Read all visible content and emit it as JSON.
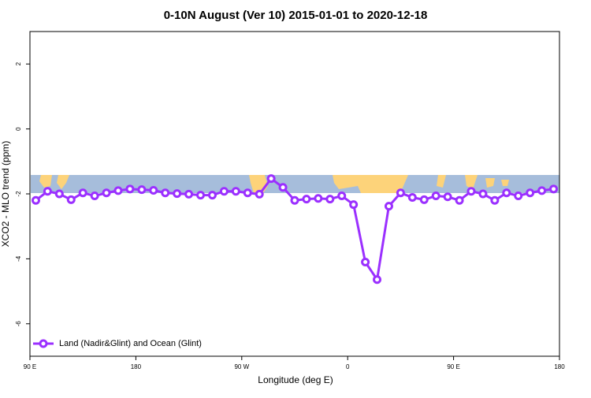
{
  "chart_data": {
    "type": "line",
    "title": "0-10N August (Ver 10)   2015-01-01 to 2020-12-18",
    "x_label": "Longitude (deg E)",
    "y_label": "XCO2 - MLO trend (ppm)",
    "x": [
      95,
      105,
      115,
      125,
      135,
      145,
      155,
      165,
      175,
      185,
      195,
      205,
      215,
      225,
      235,
      245,
      255,
      265,
      275,
      285,
      295,
      305,
      315,
      325,
      335,
      345,
      355,
      365,
      375,
      385,
      395,
      405,
      415,
      425,
      435,
      445,
      455,
      465,
      475,
      485,
      495,
      505,
      515,
      525,
      535
    ],
    "series": [
      {
        "name": "Land (Nadir&Glint) and Ocean (Glint)",
        "color": "#9b30ff",
        "values": [
          -2.2,
          -1.92,
          -2.0,
          -2.18,
          -1.97,
          -2.06,
          -1.97,
          -1.9,
          -1.85,
          -1.87,
          -1.89,
          -1.97,
          -1.99,
          -2.01,
          -2.04,
          -2.04,
          -1.92,
          -1.92,
          -1.97,
          -2.01,
          -1.53,
          -1.8,
          -2.2,
          -2.16,
          -2.14,
          -2.16,
          -2.06,
          -2.33,
          -4.1,
          -4.64,
          -2.38,
          -1.97,
          -2.11,
          -2.18,
          -2.06,
          -2.09,
          -2.2,
          -1.92,
          -2.0,
          -2.2,
          -1.97,
          -2.06,
          -1.97,
          -1.9,
          -1.85
        ]
      }
    ],
    "xlim": [
      90,
      540
    ],
    "xticks": [
      {
        "value": 90,
        "label": "90 E"
      },
      180,
      {
        "value": 270,
        "label": "90 W"
      },
      {
        "value": 360,
        "label": "0"
      },
      {
        "value": 450,
        "label": "90 E"
      },
      {
        "value": 540,
        "label": "180"
      }
    ],
    "ylim": [
      -7,
      3
    ],
    "yticks": [
      -6,
      -4,
      -2,
      0,
      2
    ],
    "legend": "bottom-left"
  }
}
